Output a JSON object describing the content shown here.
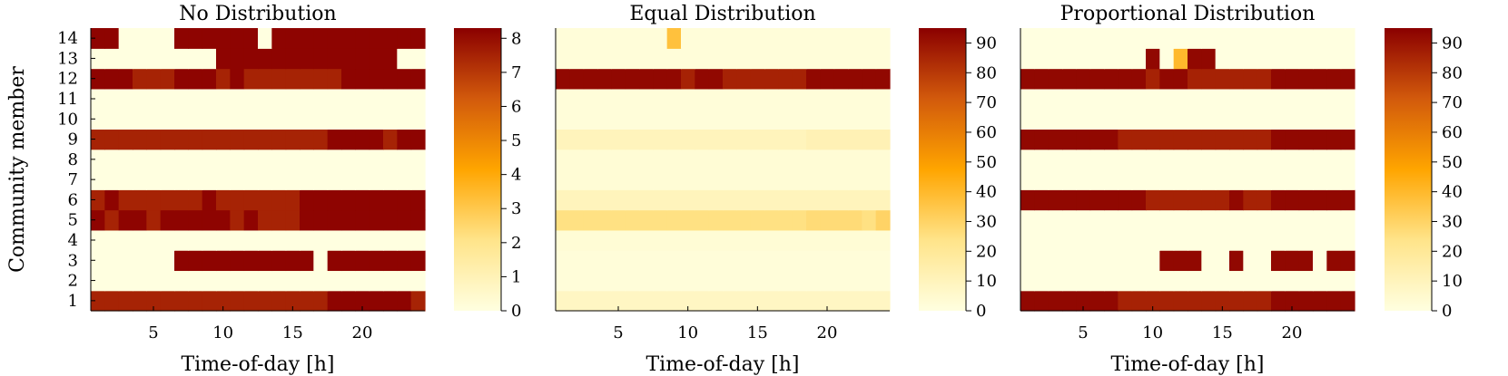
{
  "chart_data": [
    {
      "type": "heatmap",
      "title": "No Distribution",
      "xlabel": "Time-of-day [h]",
      "ylabel": "Community member",
      "x_ticks": [
        5,
        10,
        15,
        20
      ],
      "y_ticks": [
        1,
        2,
        3,
        4,
        5,
        6,
        7,
        8,
        9,
        10,
        11,
        12,
        13,
        14
      ],
      "hours": 24,
      "members": 14,
      "colorbar": {
        "min": 0,
        "max": 8.3,
        "ticks": [
          0,
          1,
          2,
          3,
          4,
          5,
          6,
          7,
          8
        ]
      },
      "rows": {
        "1": [
          7.5,
          7.5,
          7.5,
          7.5,
          7.5,
          7.5,
          7.5,
          7.5,
          7.5,
          7.5,
          7.5,
          7.5,
          7.5,
          7.5,
          7.5,
          7.5,
          7.5,
          8.2,
          8.2,
          8.2,
          8.2,
          8.2,
          8.2,
          7.5
        ],
        "2": [
          0,
          0,
          0,
          0,
          0,
          0,
          0,
          0,
          0,
          0,
          0,
          0,
          0,
          0,
          0,
          0,
          0,
          0,
          0,
          0,
          0,
          0,
          0,
          0
        ],
        "3": [
          0,
          0,
          0,
          0,
          0,
          0,
          8.2,
          8.2,
          8.2,
          8.2,
          8.2,
          8.2,
          8.2,
          8.2,
          8.2,
          8.2,
          0,
          8.2,
          8.2,
          8.2,
          8.2,
          8.2,
          8.2,
          8.2
        ],
        "4": [
          0,
          0,
          0,
          0,
          0,
          0,
          0,
          0,
          0,
          0,
          0,
          0,
          0,
          0,
          0,
          0,
          0,
          0,
          0,
          0,
          0,
          0,
          0,
          0
        ],
        "5": [
          8.2,
          7.5,
          8.2,
          8.2,
          7.5,
          8.2,
          8.2,
          8.2,
          8.2,
          8.2,
          7.5,
          8.2,
          7.5,
          7.5,
          7.5,
          8.2,
          8.2,
          8.2,
          8.2,
          8.2,
          8.2,
          8.2,
          8.2,
          8.2
        ],
        "6": [
          7.5,
          8.2,
          7.5,
          7.5,
          7.5,
          7.5,
          7.5,
          7.5,
          8.2,
          7.5,
          7.5,
          7.5,
          7.5,
          7.5,
          7.5,
          8.2,
          8.2,
          8.2,
          8.2,
          8.2,
          8.2,
          8.2,
          8.2,
          8.2
        ],
        "7": [
          0,
          0,
          0,
          0,
          0,
          0,
          0,
          0,
          0,
          0,
          0,
          0,
          0,
          0,
          0,
          0,
          0,
          0,
          0,
          0,
          0,
          0,
          0,
          0
        ],
        "8": [
          0,
          0,
          0,
          0,
          0,
          0,
          0,
          0,
          0,
          0,
          0,
          0,
          0,
          0,
          0,
          0,
          0,
          0,
          0,
          0,
          0,
          0,
          0,
          0
        ],
        "9": [
          7.5,
          7.5,
          7.5,
          7.5,
          7.5,
          7.5,
          7.5,
          7.5,
          7.5,
          7.5,
          7.5,
          7.5,
          7.5,
          7.5,
          7.5,
          7.5,
          7.5,
          8.2,
          8.2,
          8.2,
          8.2,
          7.5,
          8.2,
          8.2
        ],
        "10": [
          0,
          0,
          0,
          0,
          0,
          0,
          0,
          0,
          0,
          0,
          0,
          0,
          0,
          0,
          0,
          0,
          0,
          0,
          0,
          0,
          0,
          0,
          0,
          0
        ],
        "11": [
          0,
          0,
          0,
          0,
          0,
          0,
          0,
          0,
          0,
          0,
          0,
          0,
          0,
          0,
          0,
          0,
          0,
          0,
          0,
          0,
          0,
          0,
          0,
          0
        ],
        "12": [
          8.2,
          8.2,
          8.2,
          7.5,
          7.5,
          7.5,
          8.2,
          8.2,
          8.2,
          7.5,
          8.2,
          7.5,
          7.5,
          7.5,
          7.5,
          7.5,
          7.5,
          7.5,
          8.2,
          8.2,
          8.2,
          8.2,
          8.2,
          8.2
        ],
        "13": [
          0,
          0,
          0,
          0,
          0,
          0,
          0,
          0,
          0,
          8.2,
          8.2,
          8.2,
          8.2,
          8.2,
          8.2,
          8.2,
          8.2,
          8.2,
          8.2,
          8.2,
          8.2,
          8.2,
          0,
          0
        ],
        "14": [
          8.2,
          8.2,
          0,
          0,
          0,
          0,
          8.2,
          8.2,
          8.2,
          8.2,
          8.2,
          8.2,
          0,
          8.2,
          8.2,
          8.2,
          8.2,
          8.2,
          8.2,
          8.2,
          8.2,
          8.2,
          8.2,
          8.2
        ]
      }
    },
    {
      "type": "heatmap",
      "title": "Equal Distribution",
      "xlabel": "Time-of-day [h]",
      "ylabel": "",
      "x_ticks": [
        5,
        10,
        15,
        20
      ],
      "y_ticks": [],
      "hours": 24,
      "members": 14,
      "colorbar": {
        "min": 0,
        "max": 95,
        "ticks": [
          0,
          10,
          20,
          30,
          40,
          50,
          60,
          70,
          80,
          90
        ]
      },
      "rows": {
        "1": [
          8,
          8,
          8,
          8,
          8,
          8,
          8,
          8,
          8,
          8,
          8,
          8,
          8,
          8,
          8,
          8,
          8,
          8,
          8,
          8,
          8,
          8,
          8,
          8
        ],
        "2": [
          2,
          2,
          2,
          2,
          2,
          2,
          2,
          2,
          2,
          2,
          2,
          2,
          2,
          2,
          2,
          2,
          2,
          2,
          2,
          2,
          2,
          2,
          2,
          2
        ],
        "3": [
          2,
          2,
          2,
          2,
          2,
          2,
          2,
          2,
          2,
          2,
          2,
          2,
          2,
          2,
          2,
          2,
          2,
          2,
          2,
          2,
          2,
          2,
          2,
          2
        ],
        "4": [
          3,
          3,
          3,
          3,
          3,
          3,
          3,
          3,
          3,
          3,
          3,
          3,
          3,
          3,
          3,
          3,
          3,
          3,
          3,
          3,
          3,
          3,
          3,
          3
        ],
        "5": [
          25,
          25,
          25,
          25,
          25,
          25,
          25,
          25,
          25,
          25,
          25,
          25,
          25,
          25,
          25,
          25,
          25,
          25,
          27,
          27,
          27,
          27,
          25,
          30
        ],
        "6": [
          10,
          10,
          10,
          10,
          10,
          10,
          10,
          10,
          10,
          10,
          10,
          10,
          10,
          10,
          10,
          10,
          10,
          10,
          10,
          10,
          10,
          10,
          10,
          10
        ],
        "7": [
          3,
          3,
          3,
          3,
          3,
          3,
          3,
          3,
          3,
          3,
          3,
          3,
          3,
          3,
          3,
          3,
          3,
          3,
          3,
          3,
          3,
          3,
          3,
          3
        ],
        "8": [
          3,
          3,
          3,
          3,
          3,
          3,
          3,
          3,
          3,
          3,
          3,
          3,
          3,
          3,
          3,
          3,
          3,
          3,
          3,
          3,
          3,
          3,
          3,
          3
        ],
        "9": [
          10,
          10,
          10,
          10,
          10,
          10,
          10,
          10,
          10,
          10,
          10,
          10,
          10,
          10,
          10,
          10,
          10,
          10,
          12,
          12,
          12,
          12,
          12,
          12
        ],
        "10": [
          2,
          2,
          2,
          2,
          2,
          2,
          2,
          2,
          2,
          2,
          2,
          2,
          2,
          2,
          2,
          2,
          2,
          2,
          2,
          2,
          2,
          2,
          2,
          2
        ],
        "11": [
          2,
          2,
          2,
          2,
          2,
          2,
          2,
          2,
          2,
          2,
          2,
          2,
          2,
          2,
          2,
          2,
          2,
          2,
          2,
          2,
          2,
          2,
          2,
          2
        ],
        "12": [
          93,
          93,
          93,
          93,
          93,
          93,
          93,
          93,
          93,
          86,
          93,
          93,
          86,
          86,
          86,
          86,
          86,
          86,
          93,
          93,
          93,
          93,
          93,
          93
        ],
        "13": [
          2,
          2,
          2,
          2,
          2,
          2,
          2,
          2,
          2,
          2,
          2,
          2,
          2,
          2,
          2,
          2,
          2,
          2,
          2,
          2,
          2,
          2,
          2,
          2
        ],
        "14": [
          2,
          2,
          2,
          2,
          2,
          2,
          2,
          2,
          37,
          2,
          2,
          2,
          2,
          2,
          2,
          2,
          2,
          2,
          2,
          2,
          2,
          2,
          2,
          2
        ]
      }
    },
    {
      "type": "heatmap",
      "title": "Proportional Distribution",
      "xlabel": "Time-of-day [h]",
      "ylabel": "",
      "x_ticks": [
        5,
        10,
        15,
        20
      ],
      "y_ticks": [],
      "hours": 24,
      "members": 14,
      "colorbar": {
        "min": 0,
        "max": 95,
        "ticks": [
          0,
          10,
          20,
          30,
          40,
          50,
          60,
          70,
          80,
          90
        ]
      },
      "rows": {
        "1": [
          93,
          93,
          93,
          93,
          93,
          93,
          93,
          86,
          86,
          86,
          86,
          86,
          86,
          86,
          86,
          86,
          86,
          86,
          93,
          93,
          93,
          93,
          93,
          93
        ],
        "2": [
          0,
          0,
          0,
          0,
          0,
          0,
          0,
          0,
          0,
          0,
          0,
          0,
          0,
          0,
          0,
          0,
          0,
          0,
          0,
          0,
          0,
          0,
          0,
          0
        ],
        "3": [
          0,
          0,
          0,
          0,
          0,
          0,
          0,
          0,
          0,
          0,
          93,
          93,
          93,
          0,
          0,
          93,
          0,
          0,
          93,
          93,
          93,
          0,
          93,
          93
        ],
        "4": [
          0,
          0,
          0,
          0,
          0,
          0,
          0,
          0,
          0,
          0,
          0,
          0,
          0,
          0,
          0,
          0,
          0,
          0,
          0,
          0,
          0,
          0,
          0,
          0
        ],
        "5": [
          0,
          0,
          0,
          0,
          0,
          0,
          0,
          0,
          0,
          0,
          0,
          0,
          0,
          0,
          0,
          0,
          0,
          0,
          0,
          0,
          0,
          0,
          0,
          0
        ],
        "6": [
          93,
          93,
          93,
          93,
          93,
          93,
          93,
          93,
          93,
          86,
          86,
          86,
          86,
          86,
          86,
          93,
          86,
          86,
          93,
          93,
          93,
          93,
          93,
          93
        ],
        "7": [
          0,
          0,
          0,
          0,
          0,
          0,
          0,
          0,
          0,
          0,
          0,
          0,
          0,
          0,
          0,
          0,
          0,
          0,
          0,
          0,
          0,
          0,
          0,
          0
        ],
        "8": [
          0,
          0,
          0,
          0,
          0,
          0,
          0,
          0,
          0,
          0,
          0,
          0,
          0,
          0,
          0,
          0,
          0,
          0,
          0,
          0,
          0,
          0,
          0,
          0
        ],
        "9": [
          93,
          93,
          93,
          93,
          93,
          93,
          93,
          86,
          86,
          86,
          86,
          86,
          86,
          86,
          86,
          86,
          86,
          86,
          93,
          93,
          93,
          93,
          93,
          93
        ],
        "10": [
          0,
          0,
          0,
          0,
          0,
          0,
          0,
          0,
          0,
          0,
          0,
          0,
          0,
          0,
          0,
          0,
          0,
          0,
          0,
          0,
          0,
          0,
          0,
          0
        ],
        "11": [
          0,
          0,
          0,
          0,
          0,
          0,
          0,
          0,
          0,
          0,
          0,
          0,
          0,
          0,
          0,
          0,
          0,
          0,
          0,
          0,
          0,
          0,
          0,
          0
        ],
        "12": [
          93,
          93,
          93,
          93,
          93,
          93,
          93,
          93,
          93,
          86,
          93,
          93,
          86,
          86,
          86,
          86,
          86,
          86,
          93,
          93,
          93,
          93,
          93,
          93
        ],
        "13": [
          0,
          0,
          0,
          0,
          0,
          0,
          0,
          0,
          0,
          93,
          0,
          40,
          93,
          93,
          0,
          0,
          0,
          0,
          0,
          0,
          0,
          0,
          0,
          0
        ],
        "14": [
          0,
          0,
          0,
          0,
          0,
          0,
          0,
          0,
          0,
          0,
          0,
          0,
          0,
          0,
          0,
          0,
          0,
          0,
          0,
          0,
          0,
          0,
          0,
          0
        ]
      }
    }
  ]
}
